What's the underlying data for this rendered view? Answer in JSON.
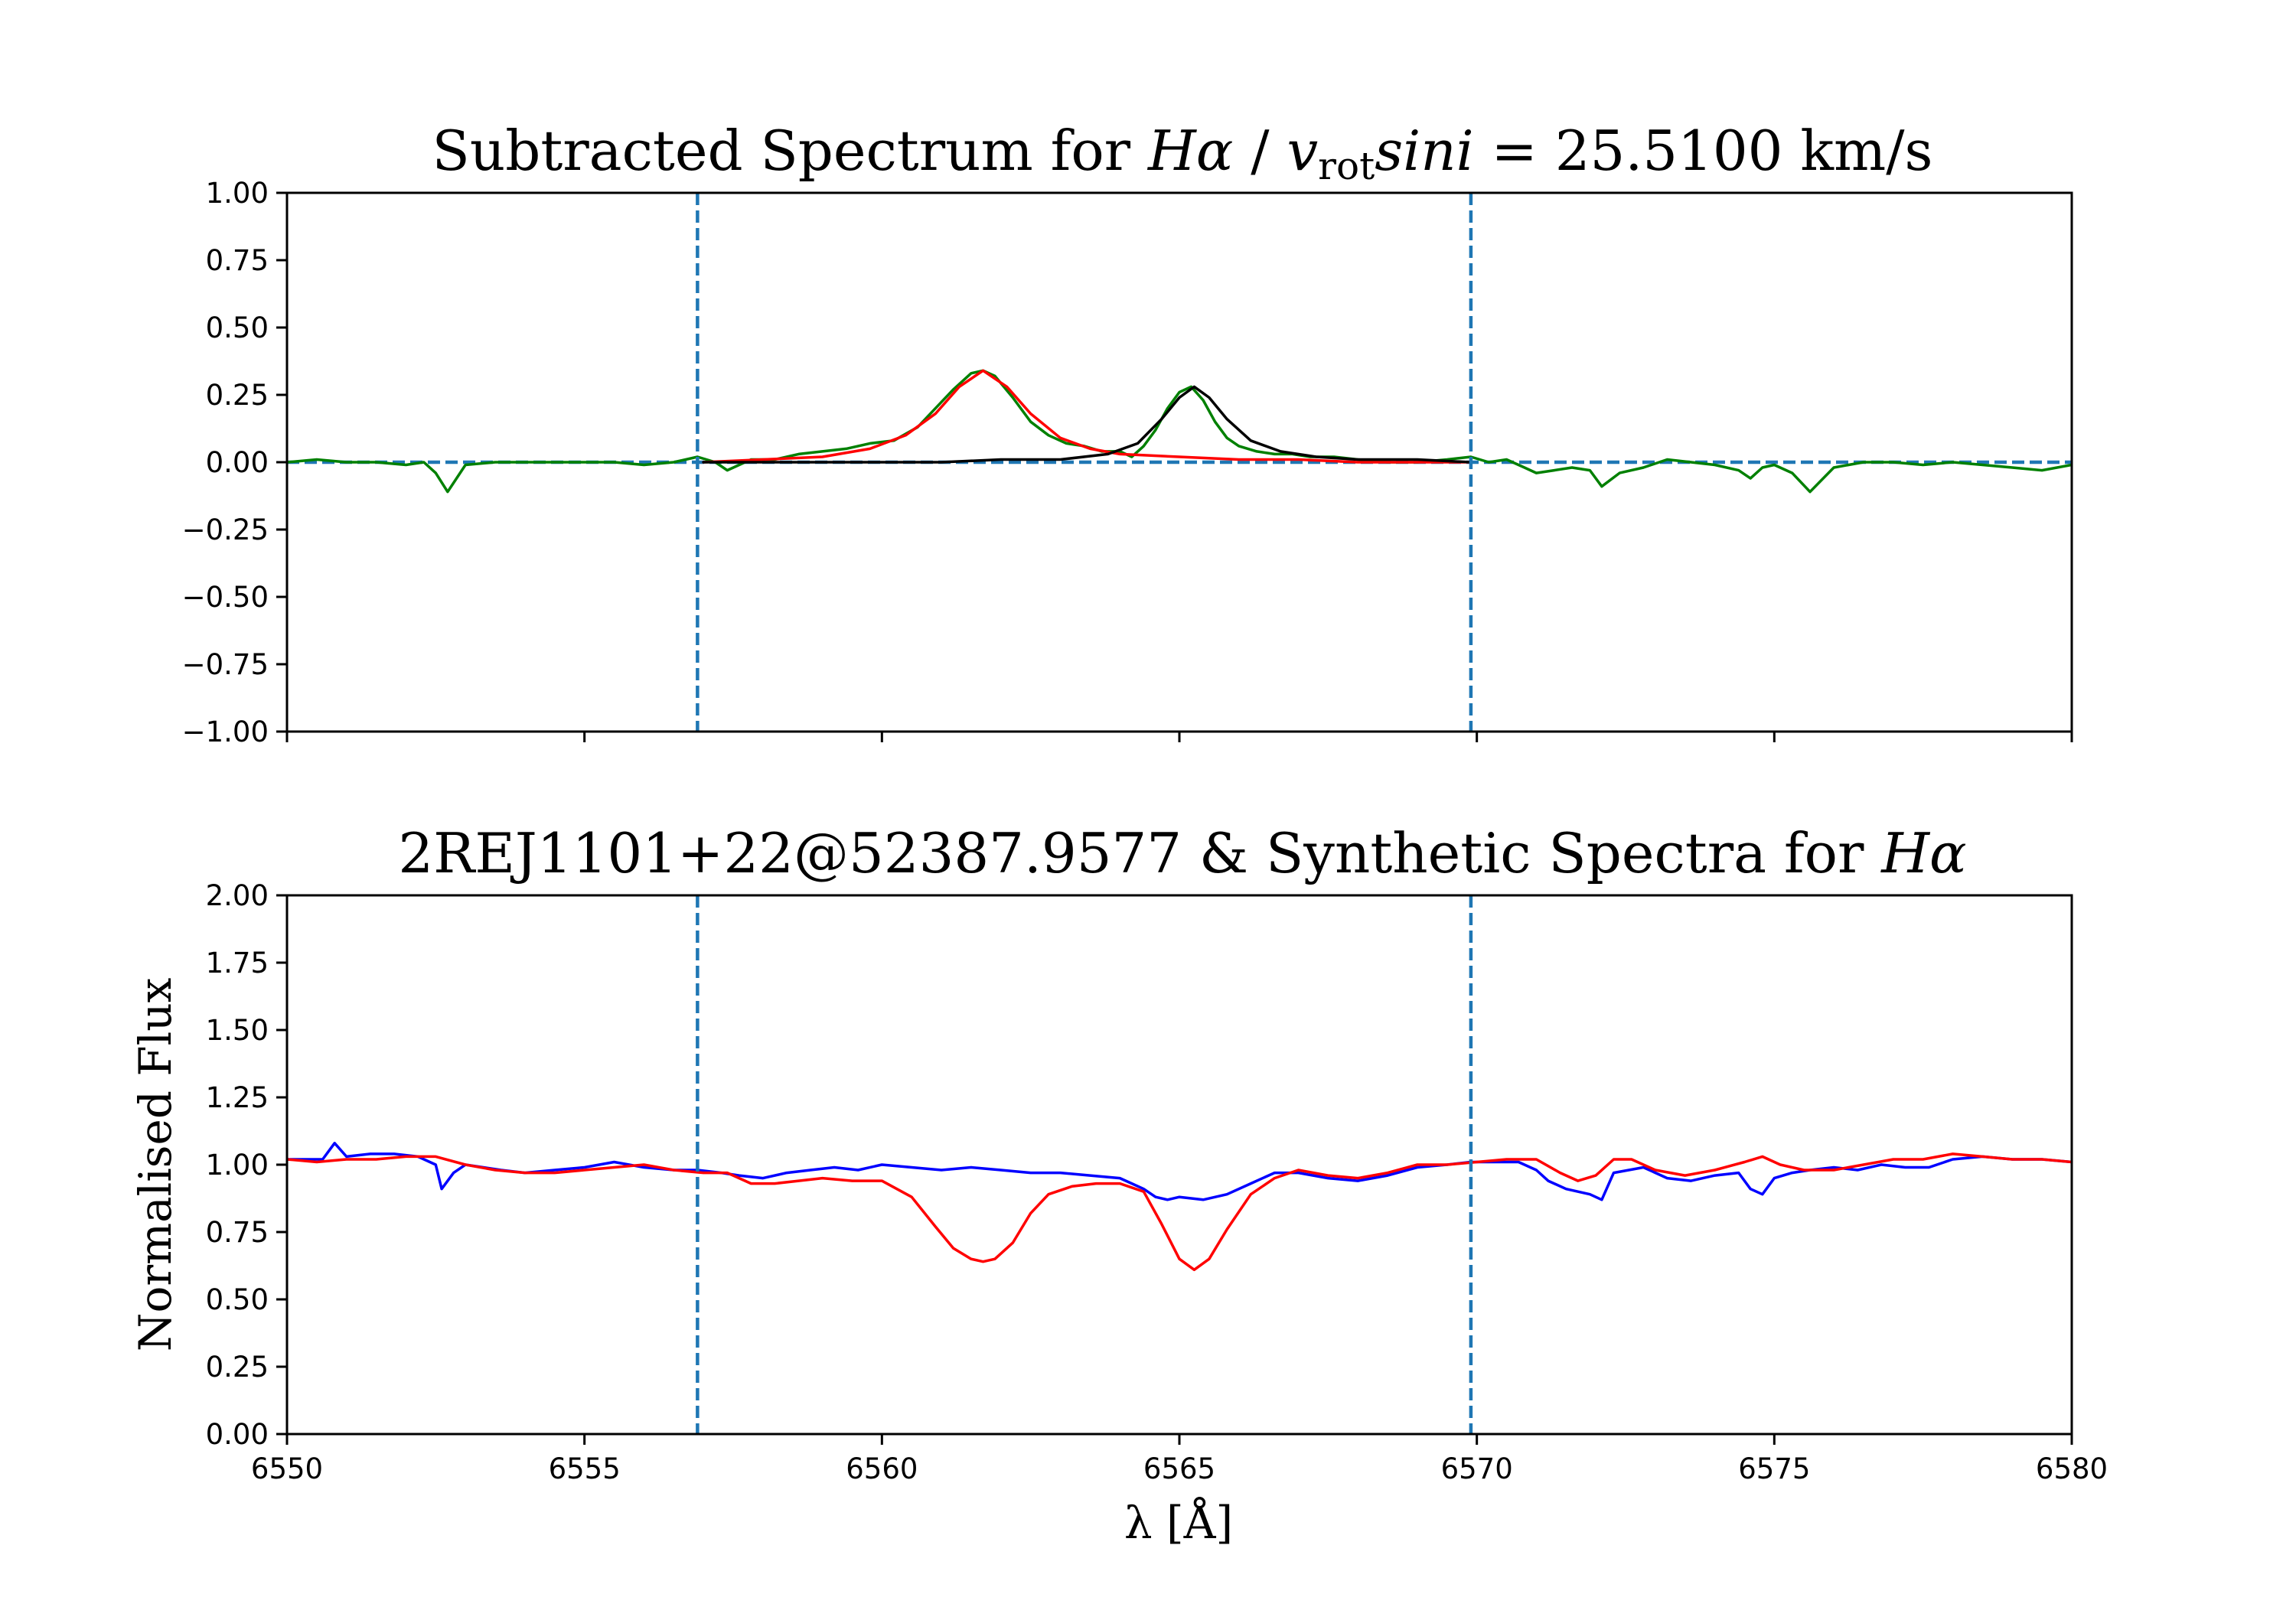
{
  "colors": {
    "observed": "#0000ff",
    "synthetic": "#ff0000",
    "subtracted": "#008000",
    "fit_component": "#000000",
    "markers": "#1f77b4"
  },
  "chart_data": [
    {
      "type": "line",
      "panel": "top",
      "title": {
        "lead": "Subtracted Spectrum for ",
        "line_sym": "Hα",
        "sep": " / ",
        "v": "v",
        "v_sub": "rot",
        "sini": "sini",
        "tail": " = 25.5100 km/s"
      },
      "xlabel": "",
      "ylabel": "",
      "xlim": [
        6550,
        6580
      ],
      "ylim": [
        -1.0,
        1.0
      ],
      "yticks": [
        -1.0,
        -0.75,
        -0.5,
        -0.25,
        0.0,
        0.25,
        0.5,
        0.75,
        1.0
      ],
      "ytick_labels": [
        "−1.00",
        "−0.75",
        "−0.50",
        "−0.25",
        "0.00",
        "0.25",
        "0.50",
        "0.75",
        "1.00"
      ],
      "xticks": [
        6550,
        6555,
        6560,
        6565,
        6570,
        6575,
        6580
      ],
      "vlines": [
        6556.9,
        6569.9
      ],
      "hline": 0.0,
      "series": [
        {
          "name": "subtracted",
          "color": "#008000",
          "x": [
            6550.0,
            6550.5,
            6551.0,
            6551.5,
            6552.0,
            6552.3,
            6552.5,
            6552.7,
            6553.0,
            6553.5,
            6554.0,
            6554.5,
            6555.0,
            6555.5,
            6556.0,
            6556.5,
            6556.9,
            6557.2,
            6557.4,
            6557.8,
            6558.2,
            6558.6,
            6559.0,
            6559.4,
            6559.8,
            6560.2,
            6560.6,
            6560.9,
            6561.2,
            6561.5,
            6561.7,
            6561.9,
            6562.2,
            6562.5,
            6562.8,
            6563.1,
            6563.4,
            6563.7,
            6564.0,
            6564.2,
            6564.4,
            6564.6,
            6564.8,
            6565.0,
            6565.2,
            6565.4,
            6565.6,
            6565.8,
            6566.0,
            6566.3,
            6566.6,
            6566.9,
            6567.2,
            6567.6,
            6568.0,
            6568.5,
            6569.0,
            6569.5,
            6569.9,
            6570.2,
            6570.5,
            6570.8,
            6571.0,
            6571.3,
            6571.6,
            6571.9,
            6572.1,
            6572.4,
            6572.8,
            6573.2,
            6573.6,
            6574.0,
            6574.4,
            6574.6,
            6574.8,
            6575.0,
            6575.3,
            6575.6,
            6576.0,
            6576.5,
            6577.0,
            6577.5,
            6578.0,
            6578.5,
            6579.0,
            6579.5,
            6580.0
          ],
          "y": [
            0.0,
            0.01,
            0.0,
            0.0,
            -0.01,
            0.0,
            -0.04,
            -0.11,
            -0.01,
            0.0,
            0.0,
            0.0,
            0.0,
            0.0,
            -0.01,
            0.0,
            0.02,
            0.0,
            -0.03,
            0.01,
            0.01,
            0.03,
            0.04,
            0.05,
            0.07,
            0.08,
            0.13,
            0.2,
            0.27,
            0.33,
            0.34,
            0.32,
            0.24,
            0.15,
            0.1,
            0.07,
            0.06,
            0.04,
            0.04,
            0.02,
            0.06,
            0.12,
            0.2,
            0.26,
            0.28,
            0.23,
            0.15,
            0.09,
            0.06,
            0.04,
            0.03,
            0.03,
            0.02,
            0.02,
            0.01,
            0.0,
            0.0,
            0.01,
            0.02,
            0.0,
            0.01,
            -0.02,
            -0.04,
            -0.03,
            -0.02,
            -0.03,
            -0.09,
            -0.04,
            -0.02,
            0.01,
            0.0,
            -0.01,
            -0.03,
            -0.06,
            -0.02,
            -0.01,
            -0.04,
            -0.11,
            -0.02,
            0.0,
            0.0,
            -0.01,
            0.0,
            -0.01,
            -0.02,
            -0.03,
            -0.01
          ]
        },
        {
          "name": "fit-component-1",
          "color": "#ff0000",
          "x": [
            6557.0,
            6558.0,
            6559.0,
            6559.8,
            6560.4,
            6560.9,
            6561.3,
            6561.7,
            6562.1,
            6562.5,
            6563.0,
            6563.5,
            6564.0,
            6565.0,
            6566.0,
            6567.0,
            6568.0,
            6569.0,
            6569.9
          ],
          "y": [
            0.0,
            0.01,
            0.02,
            0.05,
            0.1,
            0.18,
            0.28,
            0.34,
            0.28,
            0.18,
            0.09,
            0.05,
            0.03,
            0.02,
            0.01,
            0.01,
            0.0,
            0.0,
            0.0
          ]
        },
        {
          "name": "fit-component-2",
          "color": "#000000",
          "x": [
            6557.0,
            6558.0,
            6559.0,
            6560.0,
            6561.0,
            6562.0,
            6563.0,
            6563.8,
            6564.3,
            6564.7,
            6565.0,
            6565.25,
            6565.5,
            6565.8,
            6566.2,
            6566.7,
            6567.3,
            6568.0,
            6569.0,
            6569.9
          ],
          "y": [
            0.0,
            0.0,
            0.0,
            0.0,
            0.0,
            0.01,
            0.01,
            0.03,
            0.07,
            0.16,
            0.24,
            0.28,
            0.24,
            0.16,
            0.08,
            0.04,
            0.02,
            0.01,
            0.01,
            0.0
          ]
        }
      ]
    },
    {
      "type": "line",
      "panel": "bottom",
      "title": {
        "lead": "2REJ1101+22@52387.9577  &  Synthetic Spectra for ",
        "line_sym": "Hα"
      },
      "xlabel": "λ  [Å]",
      "ylabel": "Normalised Flux",
      "xlim": [
        6550,
        6580
      ],
      "ylim": [
        0.0,
        2.0
      ],
      "yticks": [
        0.0,
        0.25,
        0.5,
        0.75,
        1.0,
        1.25,
        1.5,
        1.75,
        2.0
      ],
      "ytick_labels": [
        "0.00",
        "0.25",
        "0.50",
        "0.75",
        "1.00",
        "1.25",
        "1.50",
        "1.75",
        "2.00"
      ],
      "xticks": [
        6550,
        6555,
        6560,
        6565,
        6570,
        6575,
        6580
      ],
      "xtick_labels": [
        "6550",
        "6555",
        "6560",
        "6565",
        "6570",
        "6575",
        "6580"
      ],
      "vlines": [
        6556.9,
        6569.9
      ],
      "series": [
        {
          "name": "observed",
          "color": "#0000ff",
          "x": [
            6550.0,
            6550.3,
            6550.6,
            6550.8,
            6551.0,
            6551.4,
            6551.8,
            6552.2,
            6552.5,
            6552.6,
            6552.8,
            6553.0,
            6553.3,
            6553.6,
            6554.0,
            6554.5,
            6555.0,
            6555.5,
            6556.0,
            6556.5,
            6556.9,
            6557.3,
            6557.6,
            6558.0,
            6558.4,
            6558.8,
            6559.2,
            6559.6,
            6560.0,
            6560.5,
            6561.0,
            6561.5,
            6562.0,
            6562.5,
            6563.0,
            6563.5,
            6564.0,
            6564.2,
            6564.4,
            6564.6,
            6564.8,
            6565.0,
            6565.4,
            6565.8,
            6566.2,
            6566.6,
            6567.0,
            6567.5,
            6568.0,
            6568.5,
            6569.0,
            6569.5,
            6569.9,
            6570.3,
            6570.7,
            6571.0,
            6571.2,
            6571.5,
            6571.9,
            6572.1,
            6572.3,
            6572.8,
            6573.2,
            6573.6,
            6574.0,
            6574.4,
            6574.6,
            6574.8,
            6575.0,
            6575.3,
            6575.6,
            6576.0,
            6576.4,
            6576.8,
            6577.2,
            6577.6,
            6578.0,
            6578.5,
            6579.0,
            6579.5,
            6580.0
          ],
          "y": [
            1.02,
            1.02,
            1.02,
            1.08,
            1.03,
            1.04,
            1.04,
            1.03,
            1.0,
            0.91,
            0.97,
            1.0,
            0.99,
            0.98,
            0.97,
            0.98,
            0.99,
            1.01,
            0.99,
            0.98,
            0.98,
            0.97,
            0.96,
            0.95,
            0.97,
            0.98,
            0.99,
            0.98,
            1.0,
            0.99,
            0.98,
            0.99,
            0.98,
            0.97,
            0.97,
            0.96,
            0.95,
            0.93,
            0.91,
            0.88,
            0.87,
            0.88,
            0.87,
            0.89,
            0.93,
            0.97,
            0.97,
            0.95,
            0.94,
            0.96,
            0.99,
            1.0,
            1.01,
            1.01,
            1.01,
            0.98,
            0.94,
            0.91,
            0.89,
            0.87,
            0.97,
            0.99,
            0.95,
            0.94,
            0.96,
            0.97,
            0.91,
            0.89,
            0.95,
            0.97,
            0.98,
            0.99,
            0.98,
            1.0,
            0.99,
            0.99,
            1.02,
            1.03,
            1.02,
            1.02,
            1.01
          ]
        },
        {
          "name": "synthetic",
          "color": "#ff0000",
          "x": [
            6550.0,
            6550.5,
            6551.0,
            6551.5,
            6552.0,
            6552.5,
            6553.0,
            6553.5,
            6554.0,
            6554.5,
            6555.0,
            6555.5,
            6556.0,
            6556.5,
            6557.0,
            6557.4,
            6557.8,
            6558.2,
            6558.6,
            6559.0,
            6559.5,
            6560.0,
            6560.5,
            6560.9,
            6561.2,
            6561.5,
            6561.7,
            6561.9,
            6562.2,
            6562.5,
            6562.8,
            6563.2,
            6563.6,
            6564.0,
            6564.4,
            6564.7,
            6565.0,
            6565.25,
            6565.5,
            6565.8,
            6566.2,
            6566.6,
            6567.0,
            6567.5,
            6568.0,
            6568.5,
            6569.0,
            6569.5,
            6570.0,
            6570.5,
            6571.0,
            6571.4,
            6571.7,
            6572.0,
            6572.3,
            6572.6,
            6573.0,
            6573.5,
            6574.0,
            6574.5,
            6574.8,
            6575.1,
            6575.5,
            6576.0,
            6576.5,
            6577.0,
            6577.5,
            6578.0,
            6578.5,
            6579.0,
            6579.5,
            6580.0
          ],
          "y": [
            1.02,
            1.01,
            1.02,
            1.02,
            1.03,
            1.03,
            1.0,
            0.98,
            0.97,
            0.97,
            0.98,
            0.99,
            1.0,
            0.98,
            0.97,
            0.97,
            0.93,
            0.93,
            0.94,
            0.95,
            0.94,
            0.94,
            0.88,
            0.77,
            0.69,
            0.65,
            0.64,
            0.65,
            0.71,
            0.82,
            0.89,
            0.92,
            0.93,
            0.93,
            0.9,
            0.78,
            0.65,
            0.61,
            0.65,
            0.76,
            0.89,
            0.95,
            0.98,
            0.96,
            0.95,
            0.97,
            1.0,
            1.0,
            1.01,
            1.02,
            1.02,
            0.97,
            0.94,
            0.96,
            1.02,
            1.02,
            0.98,
            0.96,
            0.98,
            1.01,
            1.03,
            1.0,
            0.98,
            0.98,
            1.0,
            1.02,
            1.02,
            1.04,
            1.03,
            1.02,
            1.02,
            1.01
          ]
        }
      ]
    }
  ]
}
